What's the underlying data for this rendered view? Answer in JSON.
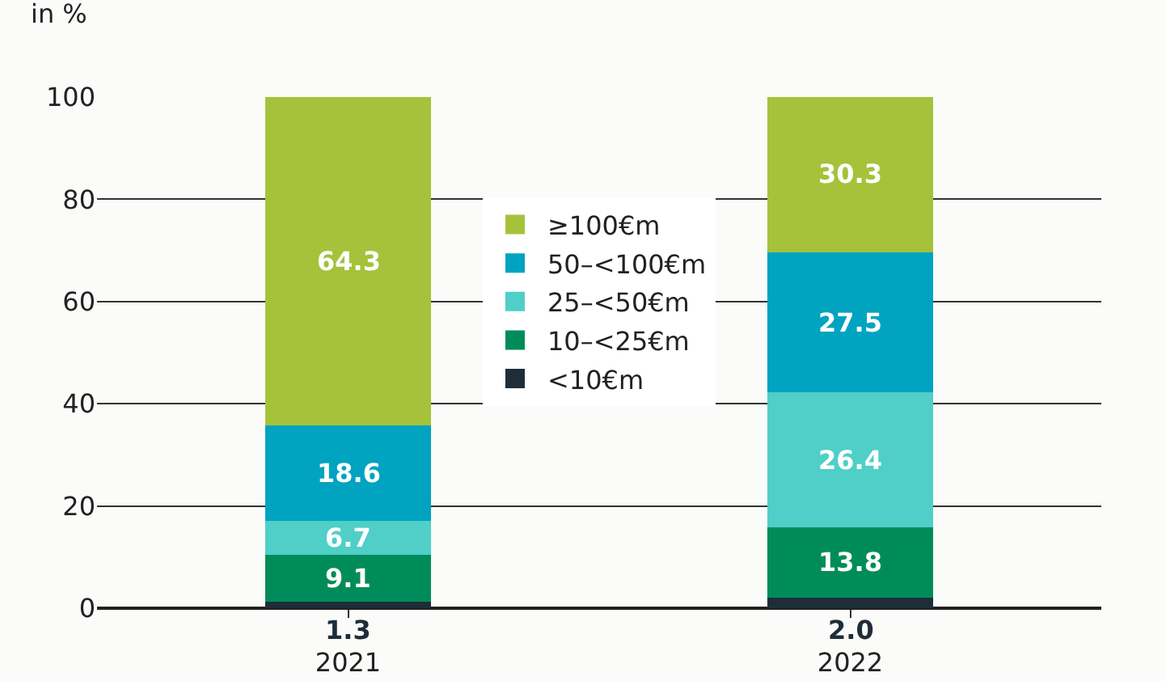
{
  "chart_data": {
    "type": "bar",
    "stacked": true,
    "ylabel": "in %",
    "categories": [
      "2021",
      "2022"
    ],
    "series": [
      {
        "name": "<10€m",
        "color": "#1e2d38",
        "values": [
          1.3,
          2.0
        ],
        "value_labels": [
          "1.3",
          "2.0"
        ]
      },
      {
        "name": "10–<25€m",
        "color": "#008c5a",
        "values": [
          9.1,
          13.8
        ],
        "value_labels": [
          "9.1",
          "13.8"
        ]
      },
      {
        "name": "25–<50€m",
        "color": "#4fcfc7",
        "values": [
          6.7,
          26.4
        ],
        "value_labels": [
          "6.7",
          "26.4"
        ]
      },
      {
        "name": "50–<100€m",
        "color": "#00a3c0",
        "values": [
          18.6,
          27.5
        ],
        "value_labels": [
          "18.6",
          "27.5"
        ]
      },
      {
        "name": "≥100€m",
        "color": "#a5c23a",
        "values": [
          64.3,
          30.3
        ],
        "value_labels": [
          "64.3",
          "30.3"
        ]
      }
    ],
    "ylim": [
      0,
      100
    ],
    "yticks": [
      0,
      20,
      40,
      60,
      80,
      100
    ],
    "grid": "y",
    "legend": "center"
  }
}
